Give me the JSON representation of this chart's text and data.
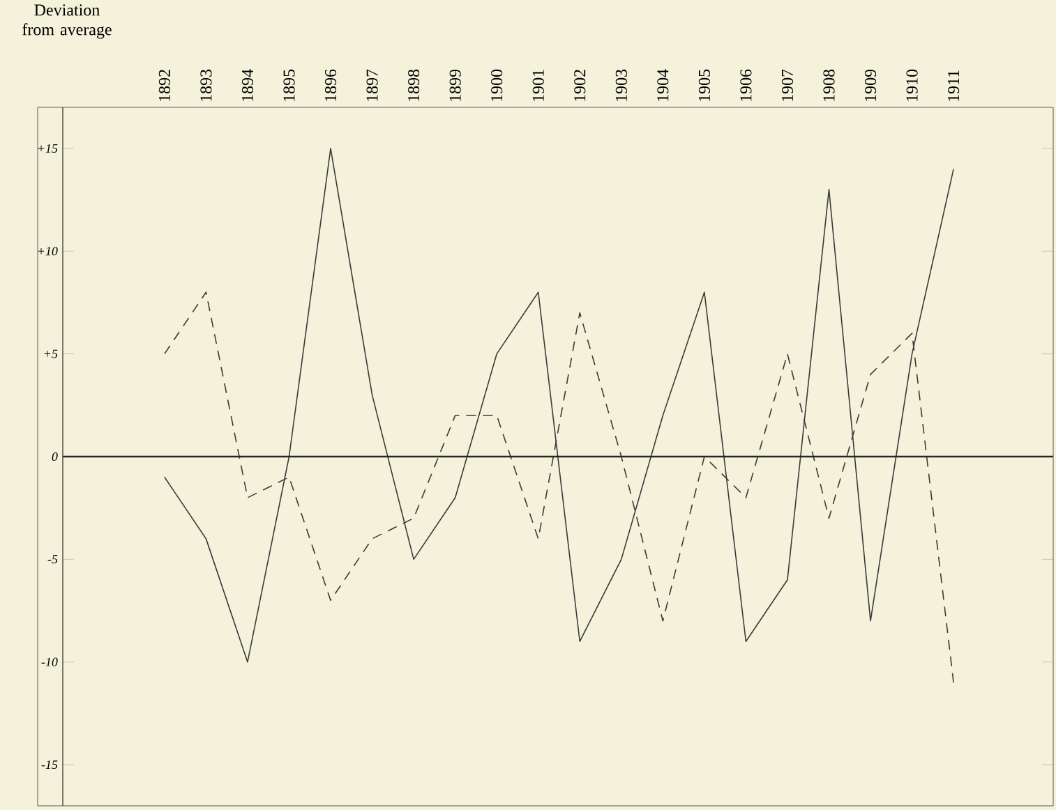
{
  "chart_data": {
    "type": "line",
    "ylabel": "Deviation from average",
    "categories": [
      "1892",
      "1893",
      "1894",
      "1895",
      "1896",
      "1897",
      "1898",
      "1899",
      "1900",
      "1901",
      "1902",
      "1903",
      "1904",
      "1905",
      "1906",
      "1907",
      "1908",
      "1909",
      "1910",
      "1911"
    ],
    "series": [
      {
        "color": "#3a3a3a",
        "line_style": "solid",
        "values": [
          -1,
          -4,
          -10,
          0,
          15,
          3,
          -5,
          -2,
          5,
          8,
          -9,
          -5,
          2,
          8,
          -9,
          -6,
          13,
          -8,
          5,
          14
        ]
      },
      {
        "color": "#3a3a3a",
        "line_style": "dashed",
        "values": [
          5,
          8,
          -2,
          -1,
          -7,
          -4,
          -3,
          2,
          2,
          -4,
          7,
          0,
          -8,
          0,
          -2,
          5,
          -3,
          4,
          6,
          -11
        ]
      }
    ],
    "ylim": [
      -17,
      17
    ],
    "yticks": [
      {
        "value": 15,
        "label": "+15"
      },
      {
        "value": 10,
        "label": "+10"
      },
      {
        "value": 5,
        "label": "+5"
      },
      0,
      -5,
      -10,
      -15
    ],
    "ref_lines": [
      {
        "axis": "y",
        "value": 0
      }
    ],
    "grid": false,
    "marker": "none"
  }
}
